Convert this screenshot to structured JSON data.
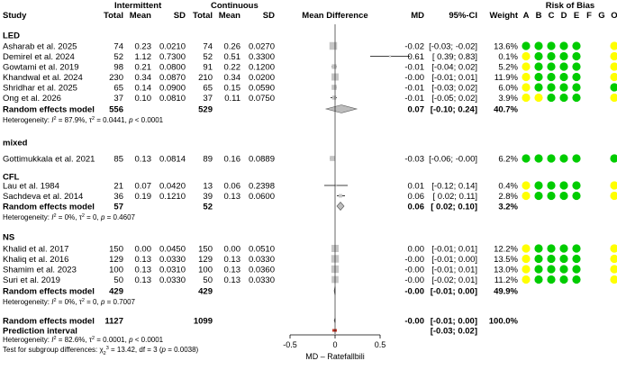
{
  "chart_data": {
    "type": "forest",
    "headers": {
      "study": "Study",
      "intermittent": "Intermittent",
      "continuous": "Continuous",
      "total": "Total",
      "mean": "Mean",
      "sd": "SD",
      "mean_difference": "Mean Difference",
      "md": "MD",
      "ci": "95%-CI",
      "weight": "Weight",
      "risk_of_bias": "Risk of Bias",
      "bias_domains": [
        "A",
        "B",
        "C",
        "D",
        "E",
        "F",
        "G",
        "O"
      ]
    },
    "xlim": [
      -0.5,
      0.5
    ],
    "ticks": [
      "-0.5",
      "0",
      "0.5"
    ],
    "xlabel": "MD – Ratefallbili",
    "bias_colors": {
      "low": "#00cc00",
      "some": "#ffff00"
    },
    "groups": [
      {
        "name": "LED",
        "studies": [
          {
            "study": "Asharab et al. 2025",
            "n1": "74",
            "mean1": "0.23",
            "sd1": "0.0210",
            "n2": "74",
            "mean2": "0.26",
            "sd2": "0.0270",
            "md": -0.02,
            "lo": -0.03,
            "hi": -0.02,
            "md_text": "-0.02",
            "ci_text": "[-0.03; -0.02]",
            "weight": 13.6,
            "weight_text": "13.6%",
            "bias": [
              "low",
              "low",
              "low",
              "low",
              "low",
              "",
              "",
              "some"
            ]
          },
          {
            "study": "Demirel et al. 2024",
            "n1": "52",
            "mean1": "1.12",
            "sd1": "0.7300",
            "n2": "52",
            "mean2": "0.51",
            "sd2": "0.3300",
            "md": 0.61,
            "lo": 0.39,
            "hi": 0.83,
            "md_text": "0.61",
            "ci_text": "[ 0.39; 0.83]",
            "weight": 0.1,
            "weight_text": "0.1%",
            "bias": [
              "some",
              "low",
              "low",
              "low",
              "low",
              "",
              "",
              "some"
            ]
          },
          {
            "study": "Gowtami et al. 2019",
            "n1": "98",
            "mean1": "0.21",
            "sd1": "0.0800",
            "n2": "91",
            "mean2": "0.22",
            "sd2": "0.1200",
            "md": -0.01,
            "lo": -0.04,
            "hi": 0.02,
            "md_text": "-0.01",
            "ci_text": "[-0.04; 0.02]",
            "weight": 5.2,
            "weight_text": "5.2%",
            "bias": [
              "some",
              "low",
              "low",
              "low",
              "low",
              "",
              "",
              "some"
            ]
          },
          {
            "study": "Khandwal et al. 2024",
            "n1": "230",
            "mean1": "0.34",
            "sd1": "0.0870",
            "n2": "210",
            "mean2": "0.34",
            "sd2": "0.0200",
            "md": -0.0,
            "lo": -0.01,
            "hi": 0.01,
            "md_text": "-0.00",
            "ci_text": "[-0.01; 0.01]",
            "weight": 11.9,
            "weight_text": "11.9%",
            "bias": [
              "some",
              "low",
              "low",
              "low",
              "low",
              "",
              "",
              "some"
            ]
          },
          {
            "study": "Shridhar et al. 2025",
            "n1": "65",
            "mean1": "0.14",
            "sd1": "0.0900",
            "n2": "65",
            "mean2": "0.15",
            "sd2": "0.0590",
            "md": -0.01,
            "lo": -0.03,
            "hi": 0.02,
            "md_text": "-0.01",
            "ci_text": "[-0.03; 0.02]",
            "weight": 6.0,
            "weight_text": "6.0%",
            "bias": [
              "some",
              "low",
              "low",
              "low",
              "low",
              "",
              "",
              "low"
            ]
          },
          {
            "study": "Ong et al. 2026",
            "n1": "37",
            "mean1": "0.10",
            "sd1": "0.0810",
            "n2": "37",
            "mean2": "0.11",
            "sd2": "0.0750",
            "md": -0.01,
            "lo": -0.05,
            "hi": 0.02,
            "md_text": "-0.01",
            "ci_text": "[-0.05; 0.02]",
            "weight": 3.9,
            "weight_text": "3.9%",
            "bias": [
              "some",
              "some",
              "low",
              "low",
              "low",
              "",
              "",
              "some"
            ]
          }
        ],
        "pooled": {
          "label": "Random effects model",
          "n1": "556",
          "n2": "529",
          "md": 0.07,
          "lo": -0.1,
          "hi": 0.24,
          "md_text": "0.07",
          "ci_text": "[-0.10; 0.24]",
          "weight_text": "40.7%"
        },
        "heterogeneity": {
          "prefix": "Heterogeneity: ",
          "i2_value": " = 87.9%, ",
          "tau2_value": " = 0.0441, ",
          "p_text": "p",
          "p_value": " < 0.0001"
        }
      },
      {
        "name": "mixed",
        "studies": [
          {
            "study": "Gottimukkala et al. 2021",
            "n1": "85",
            "mean1": "0.13",
            "sd1": "0.0814",
            "n2": "89",
            "mean2": "0.16",
            "sd2": "0.0889",
            "md": -0.03,
            "lo": -0.06,
            "hi": -0.0,
            "md_text": "-0.03",
            "ci_text": "[-0.06; -0.00]",
            "weight": 6.2,
            "weight_text": "6.2%",
            "bias": [
              "low",
              "low",
              "low",
              "low",
              "low",
              "",
              "",
              "low"
            ]
          }
        ]
      },
      {
        "name": "CFL",
        "studies": [
          {
            "study": "Lau et al. 1984",
            "n1": "21",
            "mean1": "0.07",
            "sd1": "0.0420",
            "n2": "13",
            "mean2": "0.06",
            "sd2": "0.2398",
            "md": 0.01,
            "lo": -0.12,
            "hi": 0.14,
            "md_text": "0.01",
            "ci_text": "[-0.12; 0.14]",
            "weight": 0.4,
            "weight_text": "0.4%",
            "bias": [
              "some",
              "low",
              "low",
              "low",
              "low",
              "",
              "",
              "some"
            ]
          },
          {
            "study": "Sachdeva et al. 2014",
            "n1": "36",
            "mean1": "0.19",
            "sd1": "0.1210",
            "n2": "39",
            "mean2": "0.13",
            "sd2": "0.0600",
            "md": 0.06,
            "lo": 0.02,
            "hi": 0.11,
            "md_text": "0.06",
            "ci_text": "[ 0.02; 0.11]",
            "weight": 2.8,
            "weight_text": "2.8%",
            "bias": [
              "some",
              "low",
              "low",
              "low",
              "low",
              "",
              "",
              "some"
            ]
          }
        ],
        "pooled": {
          "label": "Random effects model",
          "n1": "57",
          "n2": "52",
          "md": 0.06,
          "lo": 0.02,
          "hi": 0.1,
          "md_text": "0.06",
          "ci_text": "[ 0.02; 0.10]",
          "weight_text": "3.2%"
        },
        "heterogeneity": {
          "prefix": "Heterogeneity: ",
          "i2_value": " = 0%, ",
          "tau2_value": " = 0, ",
          "p_text": "p",
          "p_value": " = 0.4607"
        }
      },
      {
        "name": "NS",
        "studies": [
          {
            "study": "Khalid et al. 2017",
            "n1": "150",
            "mean1": "0.00",
            "sd1": "0.0450",
            "n2": "150",
            "mean2": "0.00",
            "sd2": "0.0510",
            "md": -0.0,
            "lo": -0.01,
            "hi": 0.01,
            "md_text": "0.00",
            "ci_text": "[-0.01; 0.01]",
            "weight": 12.2,
            "weight_text": "12.2%",
            "bias": [
              "some",
              "low",
              "low",
              "low",
              "low",
              "",
              "",
              "some"
            ]
          },
          {
            "study": "Khaliq et al. 2016",
            "n1": "129",
            "mean1": "0.13",
            "sd1": "0.0330",
            "n2": "129",
            "mean2": "0.13",
            "sd2": "0.0330",
            "md": -0.0,
            "lo": -0.01,
            "hi": 0.0,
            "md_text": "-0.00",
            "ci_text": "[-0.01; 0.00]",
            "weight": 13.5,
            "weight_text": "13.5%",
            "bias": [
              "some",
              "low",
              "low",
              "low",
              "low",
              "",
              "",
              "some"
            ]
          },
          {
            "study": "Shamim et al. 2023",
            "n1": "100",
            "mean1": "0.13",
            "sd1": "0.0310",
            "n2": "100",
            "mean2": "0.13",
            "sd2": "0.0360",
            "md": -0.0,
            "lo": -0.01,
            "hi": 0.01,
            "md_text": "-0.00",
            "ci_text": "[-0.01; 0.01]",
            "weight": 13.0,
            "weight_text": "13.0%",
            "bias": [
              "some",
              "low",
              "low",
              "low",
              "low",
              "",
              "",
              "some"
            ]
          },
          {
            "study": "Suri et al. 2019",
            "n1": "50",
            "mean1": "0.13",
            "sd1": "0.0330",
            "n2": "50",
            "mean2": "0.13",
            "sd2": "0.0330",
            "md": -0.0,
            "lo": -0.02,
            "hi": 0.01,
            "md_text": "-0.00",
            "ci_text": "[-0.02; 0.01]",
            "weight": 11.2,
            "weight_text": "11.2%",
            "bias": [
              "some",
              "low",
              "low",
              "low",
              "low",
              "",
              "",
              "some"
            ]
          }
        ],
        "pooled": {
          "label": "Random effects model",
          "n1": "429",
          "n2": "429",
          "md": -0.0,
          "lo": -0.01,
          "hi": 0.0,
          "md_text": "-0.00",
          "ci_text": "[-0.01; 0.00]",
          "weight_text": "49.9%"
        },
        "heterogeneity": {
          "prefix": "Heterogeneity: ",
          "i2_value": " = 0%, ",
          "tau2_value": " = 0, ",
          "p_text": "p",
          "p_value": " = 0.7007"
        }
      }
    ],
    "overall": {
      "pooled": {
        "label": "Random effects model",
        "n1": "1127",
        "n2": "1099",
        "md": -0.0,
        "lo": -0.01,
        "hi": 0.0,
        "md_text": "-0.00",
        "ci_text": "[-0.01; 0.00]",
        "weight_text": "100.0%"
      },
      "prediction": {
        "label": "Prediction interval",
        "lo": -0.03,
        "hi": 0.02,
        "ci_text": "[-0.03; 0.02]"
      },
      "heterogeneity": {
        "prefix": "Heterogeneity: ",
        "i2_value": " = 82.6%, ",
        "tau2_value": " = 0.0001, ",
        "p_text": "p",
        "p_value": " < 0.0001"
      },
      "subgroup_test": {
        "prefix": "Test for subgroup differences: ",
        "chi_value": " = 13.42, df = 3 (",
        "p_text": "p",
        "p_value": " = 0.0038)"
      }
    }
  }
}
